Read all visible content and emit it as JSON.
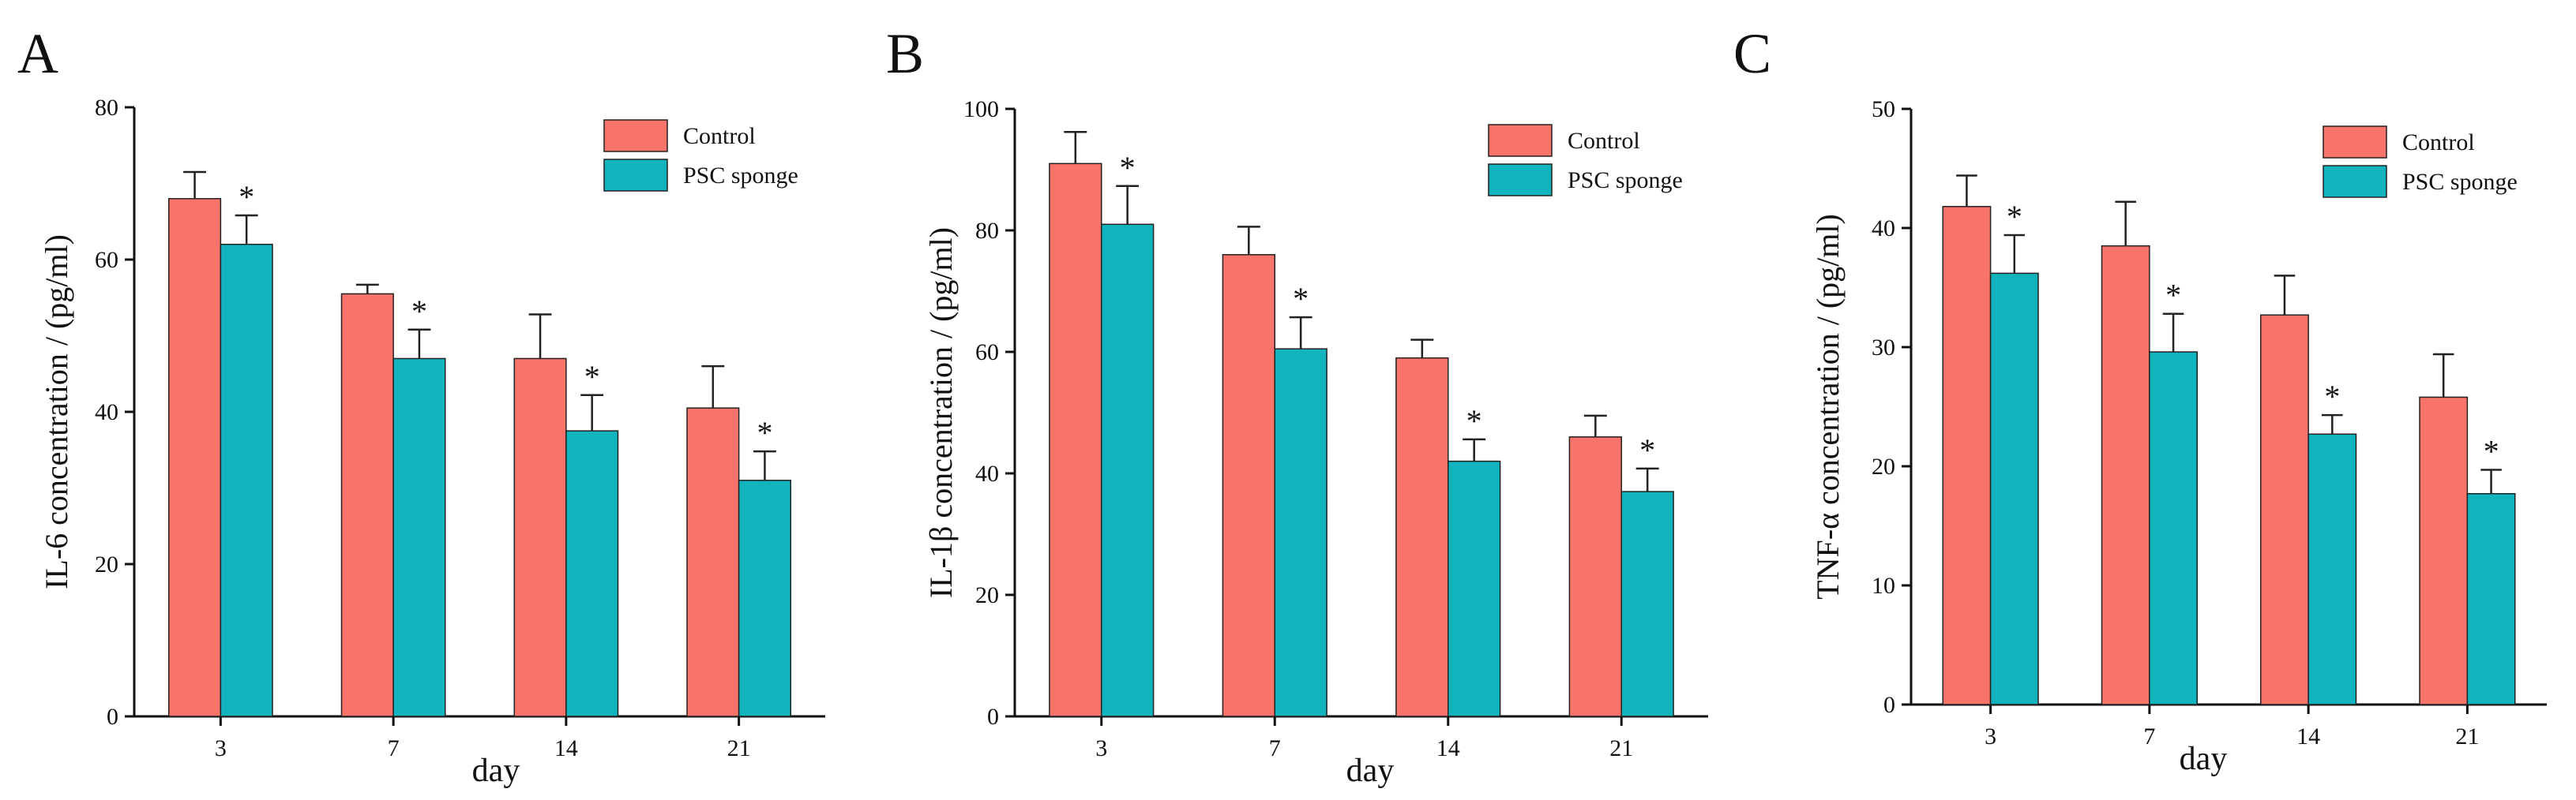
{
  "colors": {
    "control": "#F8736A",
    "psc": "#11B4BD",
    "axis": "#111111"
  },
  "chart_data": [
    {
      "type": "bar",
      "panel": "A",
      "categories": [
        "3",
        "7",
        "14",
        "21"
      ],
      "xlabel": "day",
      "ylabel": "IL-6 concentration / (pg/ml)",
      "ylim": [
        0,
        80
      ],
      "yticks": [
        "0",
        "20",
        "40",
        "60",
        "80"
      ],
      "series": [
        {
          "name": "Control",
          "values": [
            68,
            55.5,
            47,
            40.5
          ],
          "errors": [
            3.5,
            1.2,
            5.8,
            5.5
          ]
        },
        {
          "name": "PSC sponge",
          "values": [
            62,
            47,
            37.5,
            31
          ],
          "errors": [
            3.8,
            3.8,
            4.7,
            3.8
          ]
        }
      ],
      "significance": [
        "*",
        "*",
        "*",
        "*"
      ]
    },
    {
      "type": "bar",
      "panel": "B",
      "categories": [
        "3",
        "7",
        "14",
        "21"
      ],
      "xlabel": "day",
      "ylabel": "IL-1β concentration / (pg/ml)",
      "ylim": [
        0,
        100
      ],
      "yticks": [
        "0",
        "20",
        "40",
        "60",
        "80",
        "100"
      ],
      "series": [
        {
          "name": "Control",
          "values": [
            91,
            76,
            59,
            46
          ],
          "errors": [
            5.2,
            4.6,
            3,
            3.5
          ]
        },
        {
          "name": "PSC sponge",
          "values": [
            81,
            60.5,
            42,
            37
          ],
          "errors": [
            6.3,
            5.2,
            3.6,
            3.8
          ]
        }
      ],
      "significance": [
        "*",
        "*",
        "*",
        "*"
      ]
    },
    {
      "type": "bar",
      "panel": "C",
      "categories": [
        "3",
        "7",
        "14",
        "21"
      ],
      "xlabel": "day",
      "ylabel": "TNF-α concentration / (pg/ml)",
      "ylim": [
        0,
        50
      ],
      "yticks": [
        "0",
        "10",
        "20",
        "30",
        "40",
        "50"
      ],
      "series": [
        {
          "name": "Control",
          "values": [
            41.8,
            38.5,
            32.7,
            25.8
          ],
          "errors": [
            2.6,
            3.7,
            3.3,
            3.6
          ]
        },
        {
          "name": "PSC sponge",
          "values": [
            36.2,
            29.6,
            22.7,
            17.7
          ],
          "errors": [
            3.2,
            3.2,
            1.6,
            2
          ]
        }
      ],
      "significance": [
        "*",
        "*",
        "*",
        "*"
      ]
    }
  ]
}
